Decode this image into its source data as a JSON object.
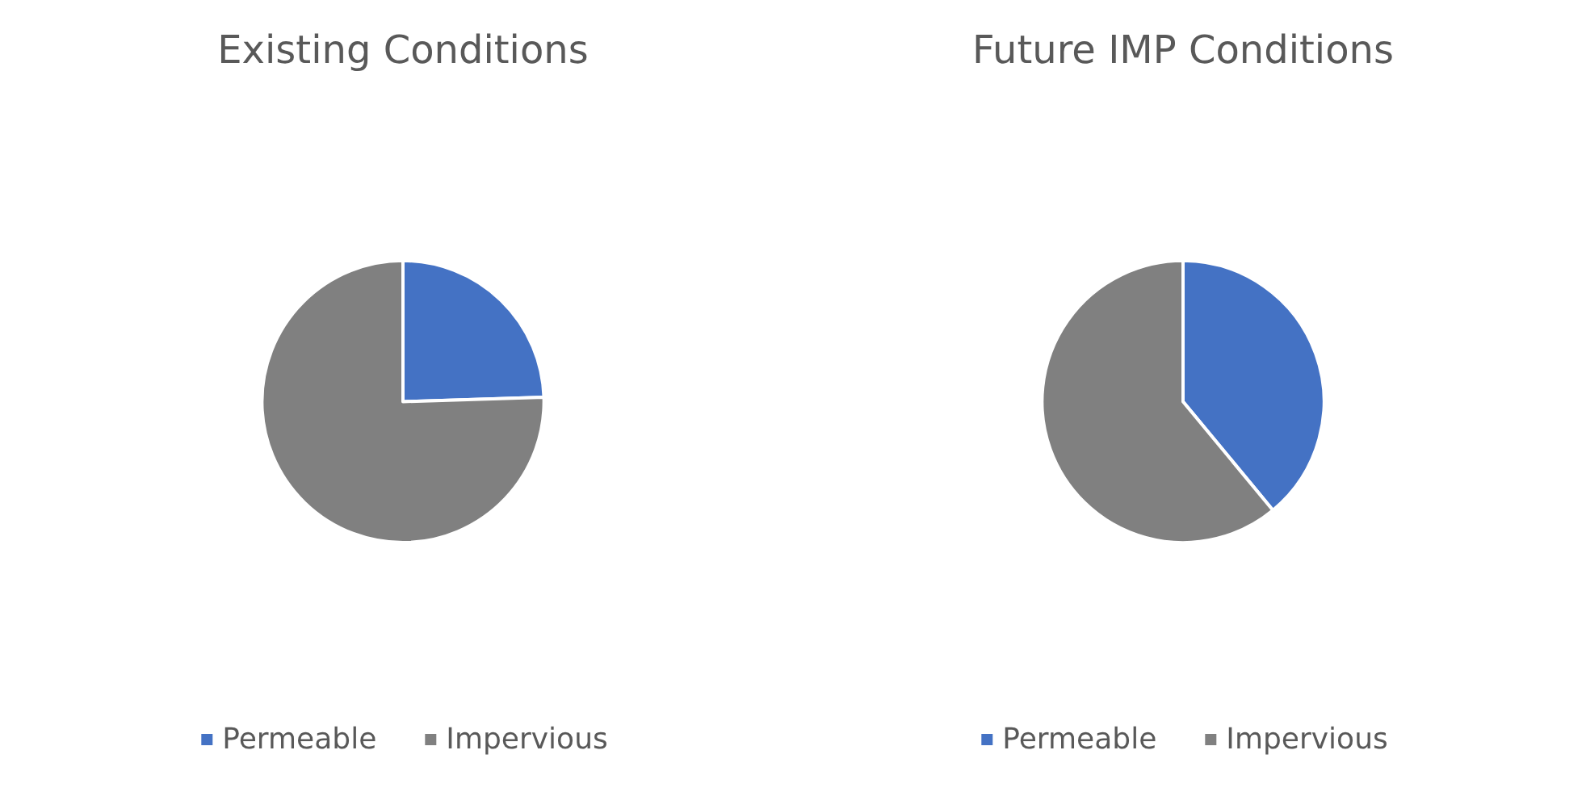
{
  "chart_data": [
    {
      "type": "pie",
      "title": "Existing Conditions",
      "categories": [
        "Permeable",
        "Impervious"
      ],
      "values": [
        24.5,
        75.5
      ],
      "colors": [
        "#4472c4",
        "#808080"
      ],
      "legend": "bottom"
    },
    {
      "type": "pie",
      "title": "Future IMP Conditions",
      "categories": [
        "Permeable",
        "Impervious"
      ],
      "values": [
        39,
        61
      ],
      "colors": [
        "#4472c4",
        "#808080"
      ],
      "legend": "bottom"
    }
  ]
}
